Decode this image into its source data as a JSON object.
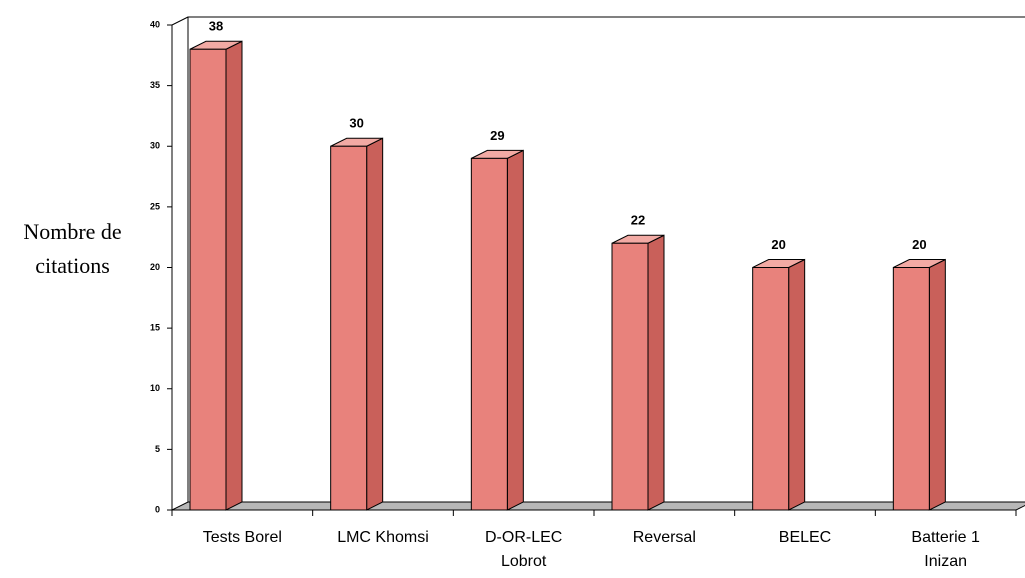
{
  "chart_data": {
    "type": "bar3d",
    "ylabel": "Nombre de\ncitations",
    "categories": [
      "Tests Borel",
      "LMC Khomsi",
      "D-OR-LEC\nLobrot",
      "Reversal",
      "BELEC",
      "Batterie 1\nInizan"
    ],
    "values": [
      38,
      30,
      29,
      22,
      20,
      20
    ],
    "color": "#e8827c",
    "ylim": [
      0,
      40
    ],
    "yticks": [
      0,
      5,
      10,
      15,
      20,
      25,
      30,
      35,
      40
    ]
  }
}
